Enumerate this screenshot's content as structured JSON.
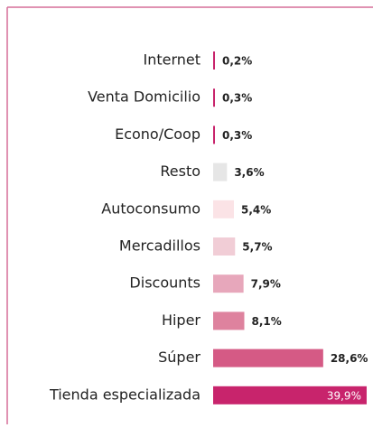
{
  "chart_data": {
    "type": "hbar",
    "categories": [
      "Internet",
      "Venta Domicilio",
      "Econo/Coop",
      "Resto",
      "Autoconsumo",
      "Mercadillos",
      "Discounts",
      "Hiper",
      "Súper",
      "Tienda especializada"
    ],
    "values": [
      0.2,
      0.3,
      0.3,
      3.6,
      5.4,
      5.7,
      7.9,
      8.1,
      28.6,
      39.9
    ],
    "value_labels": [
      "0,2%",
      "0,3%",
      "0,3%",
      "3,6%",
      "5,4%",
      "5,7%",
      "7,9%",
      "8,1%",
      "28,6%",
      "39,9%"
    ],
    "colors": [
      "#c8246c",
      "#c8246c",
      "#c8246c",
      "#e6e6e6",
      "#fbe3e6",
      "#f1cdd6",
      "#e7a7bb",
      "#de829e",
      "#d55a85",
      "#c8246c"
    ]
  }
}
